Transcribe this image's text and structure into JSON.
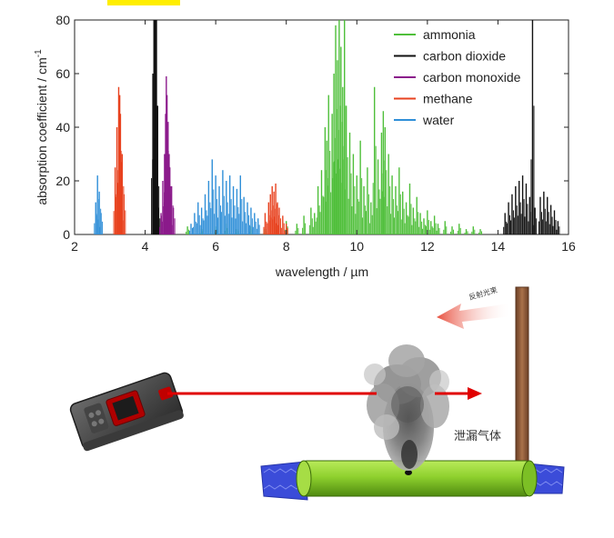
{
  "chart_data": {
    "type": "line",
    "title": "",
    "xlabel": "wavelength / µm",
    "ylabel": "absorption coefficient / cm",
    "ylabel_superscript": "-1",
    "xlim": [
      2,
      16
    ],
    "ylim": [
      0,
      80
    ],
    "x_ticks": [
      2,
      4,
      6,
      8,
      10,
      12,
      14,
      16
    ],
    "y_ticks": [
      0,
      20,
      40,
      60,
      80
    ],
    "grid": false,
    "legend_position": "top-right",
    "series": [
      {
        "name": "ammonia",
        "color": "#4fbf3a",
        "peaks": [
          [
            5.2,
            3
          ],
          [
            5.6,
            2
          ],
          [
            6.0,
            3
          ],
          [
            6.3,
            4
          ],
          [
            6.6,
            2
          ],
          [
            7.0,
            3
          ],
          [
            7.4,
            2
          ],
          [
            7.7,
            3
          ],
          [
            8.0,
            5
          ],
          [
            8.3,
            4
          ],
          [
            8.5,
            7
          ],
          [
            8.7,
            10
          ],
          [
            8.8,
            8
          ],
          [
            8.9,
            18
          ],
          [
            9.0,
            24
          ],
          [
            9.1,
            40
          ],
          [
            9.15,
            35
          ],
          [
            9.2,
            52
          ],
          [
            9.3,
            45
          ],
          [
            9.35,
            60
          ],
          [
            9.4,
            78
          ],
          [
            9.45,
            65
          ],
          [
            9.5,
            80
          ],
          [
            9.55,
            70
          ],
          [
            9.6,
            55
          ],
          [
            9.65,
            80
          ],
          [
            9.7,
            48
          ],
          [
            9.8,
            38
          ],
          [
            9.9,
            30
          ],
          [
            10.0,
            22
          ],
          [
            10.1,
            35
          ],
          [
            10.2,
            18
          ],
          [
            10.3,
            25
          ],
          [
            10.4,
            12
          ],
          [
            10.5,
            55
          ],
          [
            10.6,
            28
          ],
          [
            10.7,
            38
          ],
          [
            10.75,
            46
          ],
          [
            10.8,
            40
          ],
          [
            10.9,
            30
          ],
          [
            11.0,
            22
          ],
          [
            11.1,
            18
          ],
          [
            11.2,
            25
          ],
          [
            11.3,
            16
          ],
          [
            11.4,
            12
          ],
          [
            11.5,
            19
          ],
          [
            11.6,
            10
          ],
          [
            11.7,
            14
          ],
          [
            11.8,
            8
          ],
          [
            11.9,
            6
          ],
          [
            12.0,
            9
          ],
          [
            12.1,
            5
          ],
          [
            12.2,
            7
          ],
          [
            12.3,
            4
          ],
          [
            12.5,
            5
          ],
          [
            12.7,
            3
          ],
          [
            12.9,
            4
          ],
          [
            13.1,
            2
          ],
          [
            13.3,
            3
          ],
          [
            13.5,
            2
          ]
        ]
      },
      {
        "name": "carbon dioxide",
        "color": "#111111",
        "peaks": [
          [
            4.22,
            60
          ],
          [
            4.25,
            80
          ],
          [
            4.28,
            80
          ],
          [
            4.3,
            80
          ],
          [
            4.32,
            80
          ],
          [
            4.35,
            30
          ],
          [
            4.38,
            10
          ],
          [
            14.2,
            8
          ],
          [
            14.3,
            12
          ],
          [
            14.4,
            15
          ],
          [
            14.5,
            18
          ],
          [
            14.6,
            20
          ],
          [
            14.7,
            22
          ],
          [
            14.8,
            19
          ],
          [
            14.9,
            14
          ],
          [
            14.98,
            80
          ],
          [
            15.05,
            10
          ],
          [
            15.2,
            14
          ],
          [
            15.3,
            16
          ],
          [
            15.4,
            14
          ],
          [
            15.5,
            11
          ],
          [
            15.6,
            9
          ],
          [
            15.7,
            5
          ]
        ]
      },
      {
        "name": "carbon monoxide",
        "color": "#8b1a8b",
        "peaks": [
          [
            4.45,
            8
          ],
          [
            4.5,
            20
          ],
          [
            4.55,
            30
          ],
          [
            4.58,
            45
          ],
          [
            4.6,
            59
          ],
          [
            4.62,
            52
          ],
          [
            4.65,
            42
          ],
          [
            4.68,
            30
          ],
          [
            4.7,
            25
          ],
          [
            4.75,
            18
          ],
          [
            4.8,
            10
          ]
        ]
      },
      {
        "name": "methane",
        "color": "#e8421f",
        "peaks": [
          [
            3.15,
            25
          ],
          [
            3.2,
            40
          ],
          [
            3.25,
            55
          ],
          [
            3.28,
            52
          ],
          [
            3.3,
            45
          ],
          [
            3.35,
            30
          ],
          [
            3.4,
            15
          ],
          [
            7.4,
            8
          ],
          [
            7.5,
            12
          ],
          [
            7.55,
            15
          ],
          [
            7.6,
            18
          ],
          [
            7.65,
            16
          ],
          [
            7.7,
            19
          ],
          [
            7.75,
            12
          ],
          [
            7.8,
            10
          ],
          [
            7.9,
            7
          ],
          [
            8.0,
            4
          ]
        ]
      },
      {
        "name": "water",
        "color": "#2f8fd8",
        "peaks": [
          [
            2.6,
            12
          ],
          [
            2.65,
            22
          ],
          [
            2.7,
            16
          ],
          [
            2.75,
            8
          ],
          [
            5.3,
            4
          ],
          [
            5.4,
            8
          ],
          [
            5.5,
            12
          ],
          [
            5.6,
            10
          ],
          [
            5.7,
            15
          ],
          [
            5.8,
            20
          ],
          [
            5.9,
            28
          ],
          [
            6.0,
            22
          ],
          [
            6.1,
            18
          ],
          [
            6.2,
            24
          ],
          [
            6.3,
            20
          ],
          [
            6.4,
            22
          ],
          [
            6.5,
            18
          ],
          [
            6.6,
            17
          ],
          [
            6.7,
            22
          ],
          [
            6.8,
            14
          ],
          [
            6.9,
            12
          ],
          [
            7.0,
            10
          ],
          [
            7.1,
            8
          ],
          [
            7.2,
            6
          ]
        ]
      }
    ]
  },
  "diagram": {
    "reflected_beam_label": "反射光束",
    "leaking_gas_label": "泄漏气体",
    "colors": {
      "laser": "#e00000",
      "pipe": "#8fd12e",
      "pipe_end": "#3b4cd9",
      "pole": "#8a5a3a",
      "reflected_beam": "#ec6a5a",
      "highlight_mark": "#ffee00"
    }
  }
}
